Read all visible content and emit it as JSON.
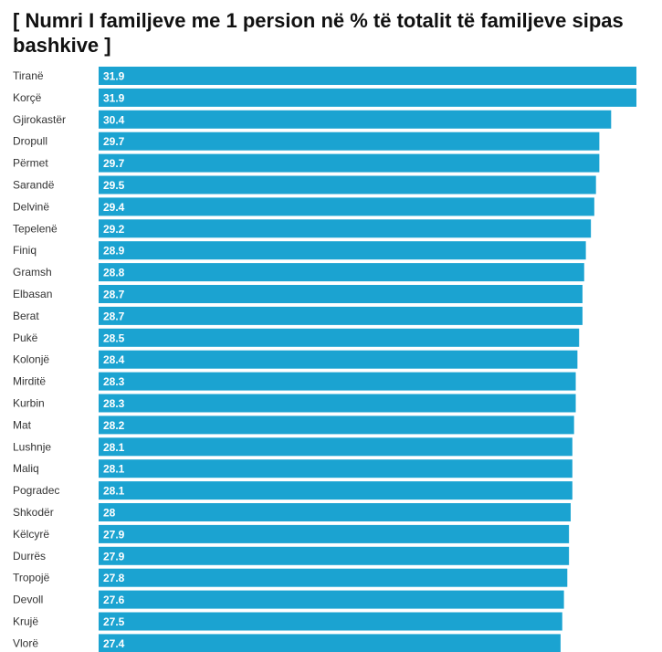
{
  "chart_data": {
    "type": "bar",
    "orientation": "horizontal",
    "title": "[ Numri I familjeve me 1 persion në % të totalit të familjeve sipas bashkive ]",
    "categories": [
      "Tiranë",
      "Korçë",
      "Gjirokastër",
      "Dropull",
      "Përmet",
      "Sarandë",
      "Delvinë",
      "Tepelenë",
      "Finiq",
      "Gramsh",
      "Elbasan",
      "Berat",
      "Pukë",
      "Kolonjë",
      "Mirditë",
      "Kurbin",
      "Mat",
      "Lushnje",
      "Maliq",
      "Pogradec",
      "Shkodër",
      "Këlcyrë",
      "Durrës",
      "Tropojë",
      "Devoll",
      "Krujë",
      "Vlorë"
    ],
    "values": [
      31.9,
      31.9,
      30.4,
      29.7,
      29.7,
      29.5,
      29.4,
      29.2,
      28.9,
      28.8,
      28.7,
      28.7,
      28.5,
      28.4,
      28.3,
      28.3,
      28.2,
      28.1,
      28.1,
      28.1,
      28,
      27.9,
      27.9,
      27.8,
      27.6,
      27.5,
      27.4
    ],
    "value_labels": [
      "31.9",
      "31.9",
      "30.4",
      "29.7",
      "29.7",
      "29.5",
      "29.4",
      "29.2",
      "28.9",
      "28.8",
      "28.7",
      "28.7",
      "28.5",
      "28.4",
      "28.3",
      "28.3",
      "28.2",
      "28.1",
      "28.1",
      "28.1",
      "28",
      "27.9",
      "27.9",
      "27.8",
      "27.6",
      "27.5",
      "27.4"
    ],
    "xlim": [
      0,
      31.9
    ],
    "bar_color": "#1ba3d1",
    "grid": false,
    "legend": "none"
  }
}
